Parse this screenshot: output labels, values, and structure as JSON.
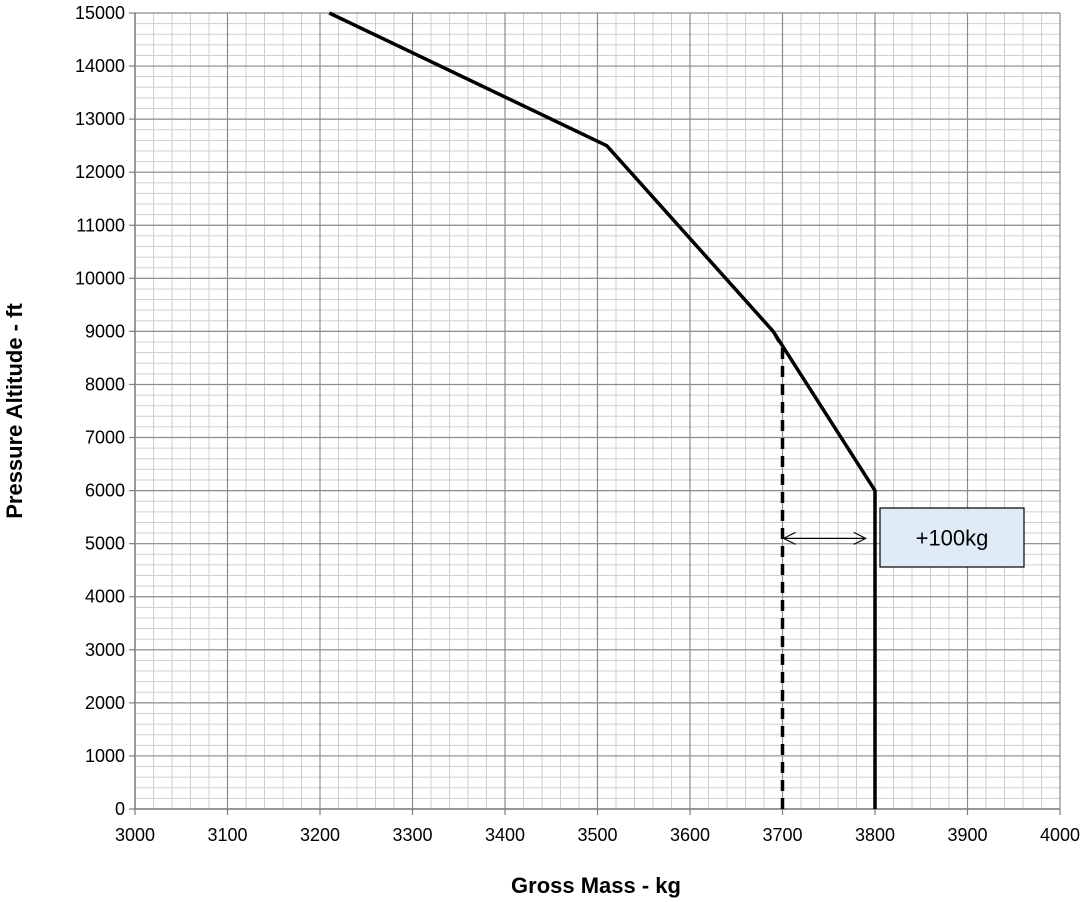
{
  "chart_data": {
    "type": "line",
    "xlabel": "Gross Mass - kg",
    "ylabel": "Pressure Altitude - ft",
    "xlim": [
      3000,
      4000
    ],
    "ylim": [
      0,
      15000
    ],
    "x_ticks": [
      3000,
      3100,
      3200,
      3300,
      3400,
      3500,
      3600,
      3700,
      3800,
      3900,
      4000
    ],
    "y_ticks": [
      0,
      1000,
      2000,
      3000,
      4000,
      5000,
      6000,
      7000,
      8000,
      9000,
      10000,
      11000,
      12000,
      13000,
      14000,
      15000
    ],
    "x_minor_step": 20,
    "y_minor_step": 200,
    "grid": true,
    "series": [
      {
        "style": "solid",
        "color": "#000000",
        "points": [
          [
            3800,
            0
          ],
          [
            3800,
            6000
          ],
          [
            3690,
            9000
          ],
          [
            3510,
            12500
          ],
          [
            3210,
            15000
          ]
        ]
      },
      {
        "style": "dashed",
        "color": "#000000",
        "points": [
          [
            3700,
            0
          ],
          [
            3700,
            8700
          ],
          [
            3690,
            9000
          ]
        ]
      }
    ],
    "annotations": [
      {
        "type": "double-arrow",
        "from": [
          3700,
          5100
        ],
        "to": [
          3790,
          5100
        ]
      },
      {
        "type": "label-box",
        "text": "+100kg",
        "fill": "#deebf7"
      }
    ]
  }
}
